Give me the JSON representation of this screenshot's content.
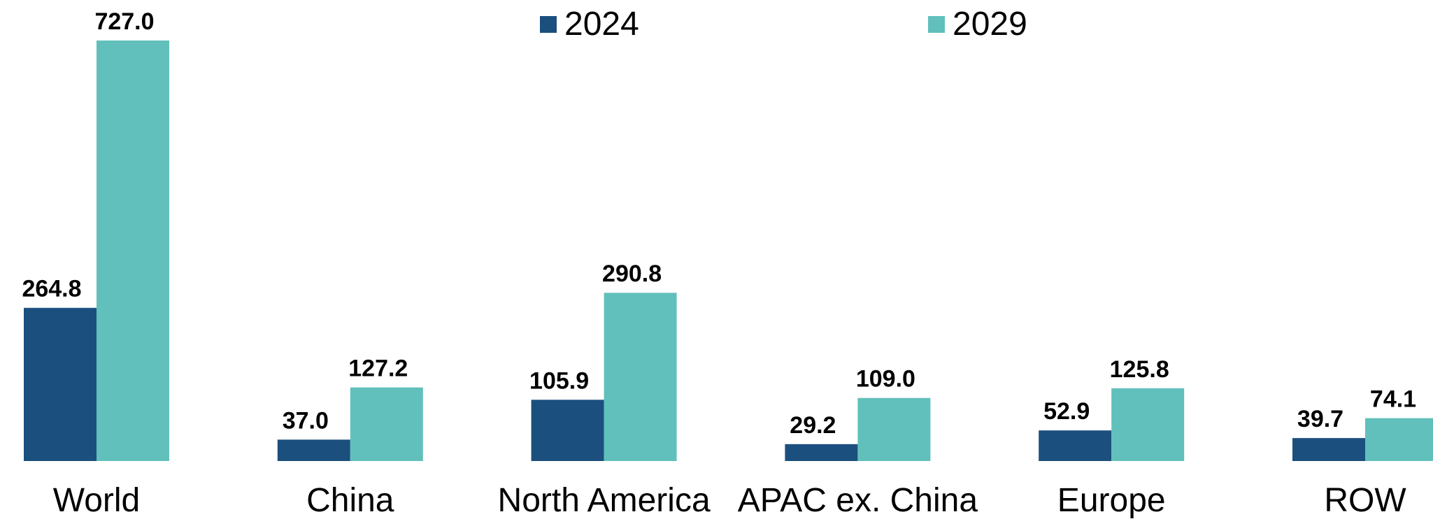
{
  "chart_data": {
    "type": "bar",
    "categories": [
      "World",
      "China",
      "North America",
      "APAC ex. China",
      "Europe",
      "ROW"
    ],
    "series": [
      {
        "name": "2024",
        "color": "#1b4f7e",
        "values": [
          264.8,
          37.0,
          105.9,
          29.2,
          52.9,
          39.7
        ]
      },
      {
        "name": "2029",
        "color": "#61c0bb",
        "values": [
          727.0,
          127.2,
          290.8,
          109.0,
          125.8,
          74.1
        ]
      }
    ],
    "data_labels": [
      [
        "264.8",
        "37.0",
        "105.9",
        "29.2",
        "52.9",
        "39.7"
      ],
      [
        "727.0",
        "127.2",
        "290.8",
        "109.0",
        "125.8",
        "74.1"
      ]
    ],
    "ylim": [
      0,
      727.0
    ],
    "grid": false,
    "legend_position": "top-center"
  }
}
